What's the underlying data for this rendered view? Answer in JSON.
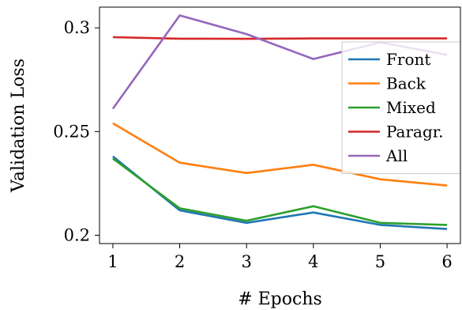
{
  "chart_data": {
    "type": "line",
    "xlabel": "# Epochs",
    "ylabel": "Validation Loss",
    "x": [
      1,
      2,
      3,
      4,
      5,
      6
    ],
    "xlim": [
      0.8,
      6.2
    ],
    "ylim": [
      0.196,
      0.31
    ],
    "xticks": [
      1,
      2,
      3,
      4,
      5,
      6
    ],
    "yticks": [
      0.2,
      0.25,
      0.3
    ],
    "ytick_labels": [
      "0.2",
      "0.25",
      "0.3"
    ],
    "grid": false,
    "legend_position": "right",
    "series": [
      {
        "name": "Front",
        "color": "#1f77b4",
        "values": [
          0.238,
          0.212,
          0.206,
          0.211,
          0.205,
          0.203
        ]
      },
      {
        "name": "Back",
        "color": "#ff7f0e",
        "values": [
          0.254,
          0.235,
          0.23,
          0.234,
          0.227,
          0.224
        ]
      },
      {
        "name": "Mixed",
        "color": "#2ca02c",
        "values": [
          0.237,
          0.213,
          0.207,
          0.214,
          0.206,
          0.205
        ]
      },
      {
        "name": "Paragr.",
        "color": "#d62728",
        "values": [
          0.2955,
          0.2948,
          0.2947,
          0.2949,
          0.2949,
          0.2949
        ]
      },
      {
        "name": "All",
        "color": "#9467bd",
        "values": [
          0.261,
          0.306,
          0.297,
          0.285,
          0.293,
          0.287
        ]
      }
    ]
  }
}
